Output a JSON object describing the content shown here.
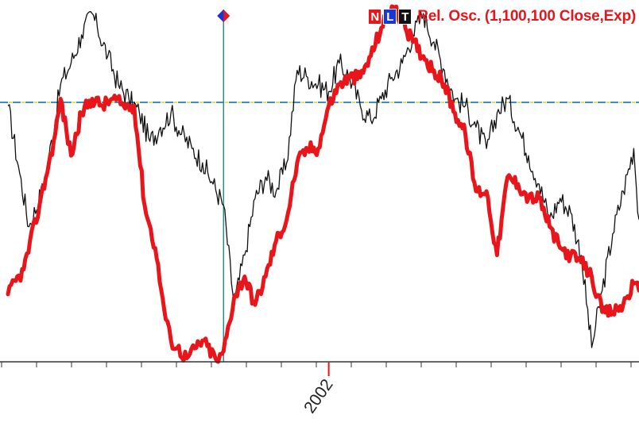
{
  "chart_data": {
    "type": "line",
    "title": "",
    "xlabel": "",
    "ylabel": "",
    "x_ticks": [
      {
        "label": "2002",
        "x": 61
      }
    ],
    "xlim": [
      0,
      120
    ],
    "ylim": [
      0,
      100
    ],
    "grid": false,
    "reference_line": {
      "y": 73,
      "style": "dash-dot",
      "colors": [
        "#e6e63a",
        "#3a8fd0"
      ]
    },
    "cursor_x": 41,
    "legend": {
      "placement": "top-right",
      "buttons": [
        {
          "label": "N",
          "color": "#e8161b"
        },
        {
          "label": "L",
          "color": "#1a37d6"
        },
        {
          "label": "T",
          "color": "#111111"
        }
      ],
      "text": "Rel. Osc. (1,100,100 Close,Exp)"
    },
    "series": [
      {
        "name": "Rel. Osc. (1,100,100 Close,Exp)",
        "color": "#e8161b",
        "x": [
          0,
          3,
          6,
          9,
          10,
          12,
          14,
          16,
          18,
          20,
          22,
          24,
          26,
          28,
          30,
          31,
          34,
          37,
          40,
          41,
          43,
          45,
          47,
          49,
          51,
          53,
          55,
          57,
          59,
          61,
          63,
          65,
          67,
          69,
          71,
          73,
          75,
          77,
          79,
          81,
          83,
          85,
          87,
          89,
          91,
          93,
          95,
          97,
          99,
          101,
          103,
          105,
          107,
          109,
          111,
          113,
          115,
          117,
          119,
          120
        ],
        "values": [
          19,
          26,
          44,
          64,
          74,
          58,
          70,
          74,
          72,
          74,
          72,
          72,
          44,
          32,
          12,
          6,
          1,
          6,
          0,
          3,
          18,
          24,
          16,
          24,
          34,
          40,
          56,
          60,
          60,
          72,
          78,
          80,
          80,
          86,
          94,
          100,
          96,
          90,
          86,
          82,
          78,
          70,
          64,
          48,
          48,
          30,
          52,
          50,
          46,
          46,
          38,
          32,
          30,
          28,
          24,
          14,
          14,
          16,
          22,
          20
        ]
      },
      {
        "name": "",
        "color": "#111111",
        "x": [
          0,
          2,
          4,
          7,
          10,
          12,
          14,
          16,
          17,
          19,
          21,
          23,
          25,
          27,
          29,
          31,
          33,
          35,
          37,
          39,
          41,
          43,
          45,
          47,
          49,
          51,
          53,
          55,
          57,
          59,
          61,
          63,
          65,
          67,
          69,
          71,
          73,
          75,
          77,
          79,
          81,
          83,
          85,
          87,
          89,
          91,
          93,
          95,
          97,
          99,
          101,
          103,
          105,
          107,
          109,
          111,
          113,
          115,
          117,
          119,
          120
        ],
        "values": [
          72,
          55,
          38,
          50,
          78,
          84,
          92,
          98,
          94,
          86,
          78,
          74,
          70,
          62,
          66,
          70,
          64,
          60,
          56,
          50,
          44,
          16,
          30,
          46,
          52,
          48,
          56,
          82,
          80,
          78,
          76,
          84,
          80,
          72,
          68,
          74,
          80,
          84,
          92,
          98,
          90,
          82,
          74,
          72,
          66,
          60,
          70,
          74,
          66,
          58,
          50,
          40,
          46,
          42,
          30,
          4,
          20,
          36,
          48,
          60,
          40
        ]
      }
    ]
  }
}
